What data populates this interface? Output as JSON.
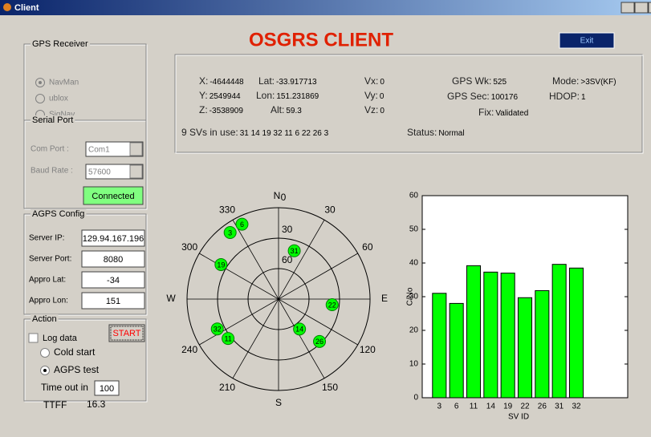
{
  "window": {
    "title": "Client"
  },
  "header": {
    "title": "OSGRS CLIENT",
    "exit": "Exit"
  },
  "gps_receiver": {
    "label": "GPS Receiver",
    "options": [
      "NavMan",
      "ublox",
      "SigNav"
    ],
    "selected": 0
  },
  "serial_port": {
    "label": "Serial Port",
    "com_port_label": "Com Port :",
    "com_port": "Com1",
    "baud_rate_label": "Baud Rate :",
    "baud_rate": "57600",
    "status": "Connected"
  },
  "agps_config": {
    "label": "AGPS Config",
    "fields": [
      {
        "label": "Server IP:",
        "value": "129.94.167.196"
      },
      {
        "label": "Server Port:",
        "value": "8080"
      },
      {
        "label": "Appro Lat:",
        "value": "-34"
      },
      {
        "label": "Appro Lon:",
        "value": "151"
      }
    ]
  },
  "action": {
    "label": "Action",
    "log_data": "Log data",
    "log_data_checked": false,
    "start": "START",
    "modes": [
      "Cold start",
      "AGPS test"
    ],
    "selected": 1,
    "timeout_label": "Time out in",
    "timeout": "100",
    "ttff_label": "TTFF",
    "ttff": "16.3"
  },
  "info": {
    "x": {
      "label": "X:",
      "value": "-4644448"
    },
    "y": {
      "label": "Y:",
      "value": "2549944"
    },
    "z": {
      "label": "Z:",
      "value": "-3538909"
    },
    "lat": {
      "label": "Lat:",
      "value": "-33.917713"
    },
    "lon": {
      "label": "Lon:",
      "value": "151.231869"
    },
    "alt": {
      "label": "Alt:",
      "value": "59.3"
    },
    "vx": {
      "label": "Vx:",
      "value": "0"
    },
    "vy": {
      "label": "Vy:",
      "value": "0"
    },
    "vz": {
      "label": "Vz:",
      "value": "0"
    },
    "gps_wk": {
      "label": "GPS Wk:",
      "value": "525"
    },
    "gps_sec": {
      "label": "GPS Sec:",
      "value": "100176"
    },
    "fix": {
      "label": "Fix:",
      "value": "Validated"
    },
    "mode": {
      "label": "Mode:",
      "value": ">3SV(KF)"
    },
    "hdop": {
      "label": "HDOP:",
      "value": "1"
    },
    "svs": {
      "label": "9 SVs in use:",
      "value": "31 14 19 32 11 6 22 26 3"
    },
    "status": {
      "label": "Status:",
      "value": "Normal"
    }
  },
  "sky_plot": {
    "north": "N",
    "south": "S",
    "east": "E",
    "west": "W",
    "azimuth_ticks": [
      0,
      30,
      60,
      120,
      150,
      210,
      240,
      300,
      330
    ],
    "elevation_ticks": [
      30,
      60
    ],
    "satellites": [
      {
        "id": "6",
        "az": 334,
        "el": 8
      },
      {
        "id": "3",
        "az": 324,
        "el": 9
      },
      {
        "id": "31",
        "az": 18,
        "el": 40
      },
      {
        "id": "19",
        "az": 301,
        "el": 24
      },
      {
        "id": "22",
        "az": 96,
        "el": 37
      },
      {
        "id": "14",
        "az": 145,
        "el": 54
      },
      {
        "id": "26",
        "az": 136,
        "el": 32
      },
      {
        "id": "32",
        "az": 244,
        "el": 23
      },
      {
        "id": "11",
        "az": 232,
        "el": 27
      }
    ]
  },
  "chart_data": {
    "type": "bar",
    "xlabel": "SV ID",
    "ylabel": "C/No",
    "categories": [
      "3",
      "6",
      "11",
      "14",
      "19",
      "22",
      "26",
      "31",
      "32"
    ],
    "values": [
      31,
      28,
      39.2,
      37.3,
      37,
      29.7,
      31.8,
      39.6,
      38.5
    ],
    "color": "#00ff00",
    "ylim": [
      0,
      60
    ],
    "yticks": [
      0,
      10,
      20,
      30,
      40,
      50,
      60
    ]
  }
}
